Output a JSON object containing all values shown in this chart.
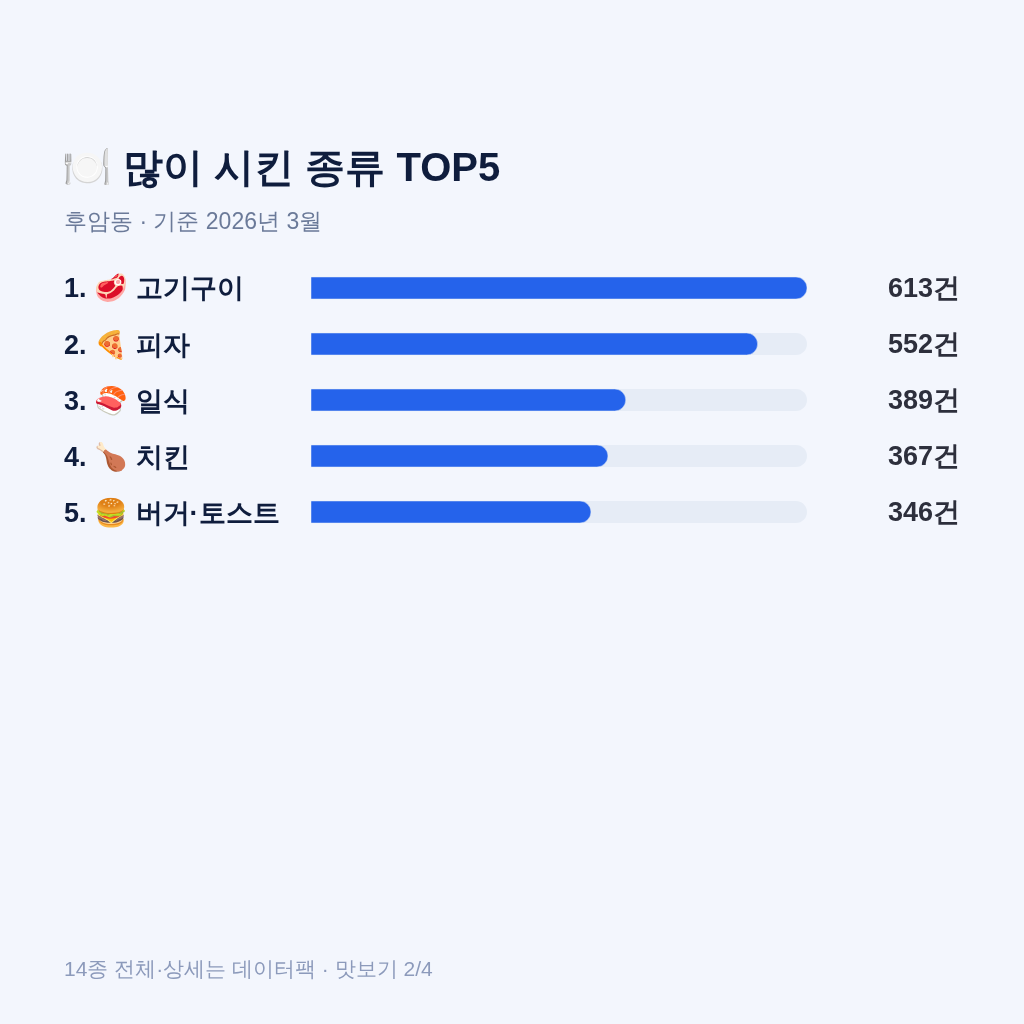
{
  "chart_data": {
    "type": "bar",
    "orientation": "horizontal",
    "title": "🍽️ 많이 시킨 종류 TOP5",
    "subtitle": "후암동 · 기준 2026년 3월",
    "categories": [
      "1. 🥩 고기구이",
      "2. 🍕 피자",
      "3. 🍣 일식",
      "4. 🍗 치킨",
      "5. 🍔 버거·토스트"
    ],
    "values": [
      613,
      552,
      389,
      367,
      346
    ],
    "value_labels": [
      "613건",
      "552건",
      "389건",
      "367건",
      "346건"
    ],
    "color": "#2563eb",
    "xlim": [
      0,
      613
    ],
    "tick_labels": false,
    "annotations": [
      "14종 전체·상세는 데이터팩 · 맛보기 2/4"
    ]
  }
}
